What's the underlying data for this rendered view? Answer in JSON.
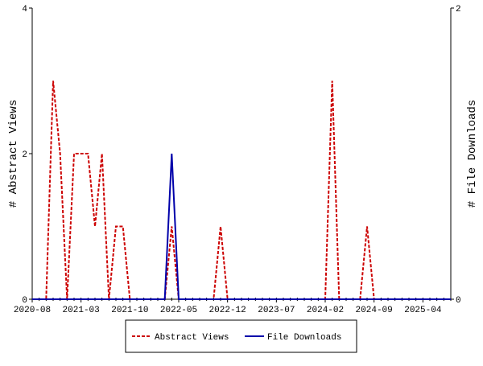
{
  "chart_data": {
    "type": "line",
    "categories": [
      "2020-08",
      null,
      null,
      null,
      null,
      null,
      null,
      "2021-03",
      null,
      null,
      null,
      null,
      null,
      null,
      "2021-10",
      null,
      null,
      null,
      null,
      null,
      null,
      "2022-05",
      null,
      null,
      null,
      null,
      null,
      null,
      "2022-12",
      null,
      null,
      null,
      null,
      null,
      null,
      "2023-07",
      null,
      null,
      null,
      null,
      null,
      null,
      "2024-02",
      null,
      null,
      null,
      null,
      null,
      null,
      "2024-09",
      null,
      null,
      null,
      null,
      null,
      null,
      "2025-04",
      null,
      null,
      null,
      null
    ],
    "ylabel": "# Abstract Views",
    "y2label": "# File Downloads",
    "ylim": [
      0,
      4
    ],
    "yticks": [
      0,
      2,
      4
    ],
    "y2lim": [
      0,
      2
    ],
    "y2ticks": [
      0,
      2
    ],
    "legend": "bottom",
    "series": [
      {
        "name": "Abstract Views",
        "color": "#cc0000",
        "dash": true,
        "values": [
          0,
          0,
          0,
          3,
          2,
          0,
          2,
          2,
          2,
          1,
          2,
          0,
          1,
          1,
          0,
          0,
          0,
          0,
          0,
          0,
          1,
          0,
          0,
          0,
          0,
          0,
          0,
          1,
          0,
          0,
          0,
          0,
          0,
          0,
          0,
          0,
          0,
          0,
          0,
          0,
          0,
          0,
          0,
          3,
          0,
          0,
          0,
          0,
          1,
          0,
          0,
          0,
          0,
          0,
          0,
          0,
          0,
          0,
          0,
          0,
          0
        ]
      },
      {
        "name": "File Downloads",
        "color": "#0000aa",
        "axis": "y2",
        "values": [
          0,
          0,
          0,
          0,
          0,
          0,
          0,
          0,
          0,
          0,
          0,
          0,
          0,
          0,
          0,
          0,
          0,
          0,
          0,
          0,
          1,
          0,
          0,
          0,
          0,
          0,
          0,
          0,
          0,
          0,
          0,
          0,
          0,
          0,
          0,
          0,
          0,
          0,
          0,
          0,
          0,
          0,
          0,
          0,
          0,
          0,
          0,
          0,
          0,
          0,
          0,
          0,
          0,
          0,
          0,
          0,
          0,
          0,
          0,
          0,
          0
        ]
      }
    ]
  }
}
